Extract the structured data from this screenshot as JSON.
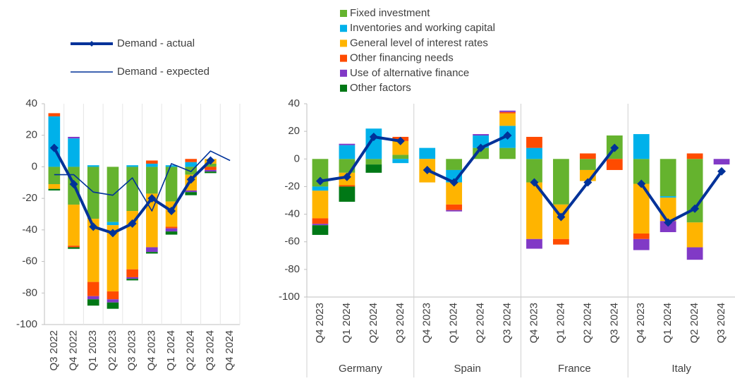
{
  "chart_data": [
    {
      "type": "bar",
      "stacked": true,
      "vgrid": true,
      "categories": [
        "Q3 2022",
        "Q4 2022",
        "Q1 2023",
        "Q2 2023",
        "Q3 2023",
        "Q4 2023",
        "Q1 2024",
        "Q2 2024",
        "Q3 2024",
        "Q4 2024"
      ],
      "ylim": [
        -100,
        40
      ],
      "yticks": [
        -100,
        -80,
        -60,
        -40,
        -20,
        0,
        20,
        40
      ],
      "legend": "top-left",
      "series": [
        {
          "type": "bar",
          "color": "#65b32e",
          "values": [
            -11,
            -24,
            -33,
            -35,
            -28,
            -17,
            -22,
            -5,
            2,
            null
          ]
        },
        {
          "type": "bar",
          "color": "#00b1ea",
          "values": [
            32,
            18,
            1,
            -2,
            1,
            2,
            1,
            3,
            0,
            null
          ]
        },
        {
          "type": "bar",
          "color": "#ffb400",
          "values": [
            -3,
            -26,
            -40,
            -42,
            -37,
            -34,
            -16,
            -10,
            3,
            null
          ]
        },
        {
          "type": "bar",
          "color": "#ff4b00",
          "values": [
            2,
            -1,
            -9,
            -5,
            -5,
            2,
            -1,
            2,
            -2,
            null
          ]
        },
        {
          "type": "bar",
          "color": "#8139c6",
          "values": [
            0,
            1,
            -2,
            -2,
            -1,
            -3,
            -2,
            -1,
            -1,
            null
          ]
        },
        {
          "type": "bar",
          "color": "#007816",
          "values": [
            -1,
            -1,
            -4,
            -4,
            -1,
            -1,
            -2,
            -2,
            -1,
            null
          ]
        },
        {
          "type": "line",
          "name": "Demand - actual",
          "color": "#003299",
          "line_width": 4,
          "marker": "diamond",
          "values": [
            12,
            -11,
            -38,
            -42,
            -36,
            -20,
            -28,
            -8,
            4,
            null
          ]
        },
        {
          "type": "line",
          "name": "Demand - expected",
          "color": "#003299",
          "line_width": 1.6,
          "values": [
            -5,
            -5,
            -16,
            -18,
            -7,
            -28,
            2,
            -3,
            10,
            4
          ]
        }
      ]
    },
    {
      "type": "bar",
      "stacked": true,
      "vgrid": false,
      "groups": [
        {
          "name": "Germany",
          "categories": [
            "Q4 2023",
            "Q1 2024",
            "Q2 2024",
            "Q3 2024"
          ]
        },
        {
          "name": "Spain",
          "categories": [
            "Q4 2023",
            "Q1 2024",
            "Q2 2024",
            "Q3 2024"
          ]
        },
        {
          "name": "France",
          "categories": [
            "Q4 2023",
            "Q1 2024",
            "Q2 2024",
            "Q3 2024"
          ]
        },
        {
          "name": "Italy",
          "categories": [
            "Q4 2023",
            "Q1 2024",
            "Q2 2024",
            "Q3 2024"
          ]
        }
      ],
      "ylim": [
        -100,
        40
      ],
      "yticks": [
        -100,
        -80,
        -60,
        -40,
        -20,
        0,
        20,
        40
      ],
      "legend": "top",
      "series": [
        {
          "type": "bar",
          "name": "Fixed investment",
          "color": "#65b32e",
          "values": [
            -20,
            -10,
            -4,
            3,
            0,
            -8,
            8,
            8,
            -17,
            -33,
            -8,
            17,
            -18,
            -27,
            -46,
            0
          ]
        },
        {
          "type": "bar",
          "name": "Inventories and working capital",
          "color": "#00b1ea",
          "values": [
            -3,
            10,
            22,
            -3,
            8,
            -9,
            9,
            16,
            8,
            0,
            0,
            0,
            18,
            -1,
            0,
            0
          ]
        },
        {
          "type": "bar",
          "name": "General level of interest rates",
          "color": "#ffb400",
          "values": [
            -20,
            -9,
            0,
            10,
            -17,
            -16,
            0,
            9,
            -41,
            -25,
            -8,
            0,
            -36,
            -17,
            -18,
            0
          ]
        },
        {
          "type": "bar",
          "name": "Other financing needs",
          "color": "#ff4b00",
          "values": [
            -4,
            -1,
            0,
            3,
            0,
            -4,
            0,
            1,
            8,
            -4,
            4,
            -8,
            -4,
            0,
            4,
            0
          ]
        },
        {
          "type": "bar",
          "name": "Use of alternative finance",
          "color": "#8139c6",
          "values": [
            -1,
            1,
            0,
            0,
            0,
            -1,
            1,
            1,
            -7,
            0,
            0,
            0,
            -8,
            -8,
            -9,
            -4
          ]
        },
        {
          "type": "bar",
          "name": "Other factors",
          "color": "#007816",
          "values": [
            -7,
            -11,
            -6,
            0,
            0,
            0,
            0,
            0,
            0,
            0,
            0,
            0,
            0,
            0,
            0,
            0
          ]
        },
        {
          "type": "line",
          "color": "#003299",
          "line_width": 4,
          "marker": "diamond",
          "values": [
            -16,
            -13,
            16,
            13,
            -8,
            -17,
            8,
            17,
            -17,
            -42,
            -17,
            8,
            -18,
            -46,
            -36,
            -9
          ]
        }
      ]
    }
  ]
}
